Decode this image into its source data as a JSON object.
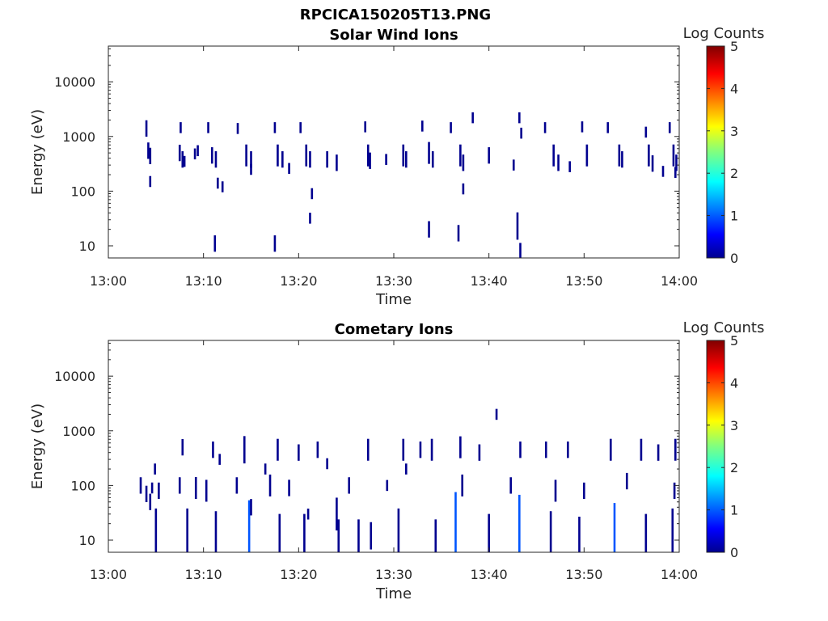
{
  "figure_title": "RPCICA150205T13.PNG",
  "colormap": [
    "#00008f",
    "#0000ff",
    "#0080ff",
    "#00ffff",
    "#80ff80",
    "#ffff00",
    "#ff8000",
    "#ff0000",
    "#800000"
  ],
  "chart_data": [
    {
      "type": "heatmap",
      "title": "Solar Wind Ions",
      "xlabel": "Time",
      "ylabel": "Energy (eV)",
      "x_ticks": [
        "13:00",
        "13:10",
        "13:20",
        "13:30",
        "13:40",
        "13:50",
        "14:00"
      ],
      "x_range_min": [
        0,
        60
      ],
      "y_scale": "log",
      "y_ticks": [
        "10",
        "100",
        "1000",
        "10000"
      ],
      "y_range": [
        6,
        45000
      ],
      "colorbar": {
        "label": "Log Counts",
        "ticks": [
          "0",
          "1",
          "2",
          "3",
          "4",
          "5"
        ],
        "range": [
          0,
          5
        ]
      },
      "cells": [
        [
          4.0,
          1400,
          0.3
        ],
        [
          4.2,
          550,
          0.3
        ],
        [
          4.4,
          440,
          0.3
        ],
        [
          4.4,
          150,
          0.2
        ],
        [
          7.6,
          1450,
          0.2
        ],
        [
          7.5,
          500,
          0.3
        ],
        [
          7.8,
          380,
          0.3
        ],
        [
          8.0,
          350,
          0.2
        ],
        [
          9.4,
          550,
          0.2
        ],
        [
          9.1,
          480,
          0.2
        ],
        [
          10.5,
          1450,
          0.2
        ],
        [
          10.9,
          450,
          0.3
        ],
        [
          11.3,
          380,
          0.3
        ],
        [
          11.2,
          11,
          0.3
        ],
        [
          11.5,
          140,
          0.2
        ],
        [
          12.0,
          120,
          0.2
        ],
        [
          13.6,
          1400,
          0.2
        ],
        [
          14.5,
          450,
          0.4
        ],
        [
          15.0,
          380,
          0.3
        ],
        [
          15.0,
          250,
          0.2
        ],
        [
          17.5,
          1450,
          0.2
        ],
        [
          17.8,
          450,
          0.4
        ],
        [
          18.3,
          380,
          0.3
        ],
        [
          17.5,
          11,
          0.3
        ],
        [
          19.0,
          260,
          0.2
        ],
        [
          20.2,
          1450,
          0.2
        ],
        [
          20.8,
          450,
          0.4
        ],
        [
          21.2,
          380,
          0.3
        ],
        [
          21.4,
          90,
          0.2
        ],
        [
          21.2,
          32,
          0.2
        ],
        [
          23.0,
          380,
          0.3
        ],
        [
          24.0,
          330,
          0.3
        ],
        [
          27.0,
          1500,
          0.2
        ],
        [
          27.3,
          450,
          0.4
        ],
        [
          27.5,
          360,
          0.3
        ],
        [
          29.2,
          380,
          0.2
        ],
        [
          31.0,
          450,
          0.4
        ],
        [
          31.3,
          380,
          0.3
        ],
        [
          33.0,
          1550,
          0.2
        ],
        [
          33.7,
          500,
          0.4
        ],
        [
          34.1,
          380,
          0.3
        ],
        [
          33.7,
          20,
          0.3
        ],
        [
          36.0,
          1450,
          0.2
        ],
        [
          37.0,
          450,
          0.4
        ],
        [
          37.3,
          330,
          0.3
        ],
        [
          37.3,
          110,
          0.2
        ],
        [
          36.8,
          17,
          0.3
        ],
        [
          38.3,
          2200,
          0.2
        ],
        [
          40.0,
          450,
          0.3
        ],
        [
          43.2,
          2200,
          0.2
        ],
        [
          43.4,
          1150,
          0.2
        ],
        [
          43.0,
          23,
          0.5
        ],
        [
          43.3,
          8,
          0.3
        ],
        [
          42.6,
          300,
          0.2
        ],
        [
          45.9,
          1450,
          0.2
        ],
        [
          46.8,
          450,
          0.4
        ],
        [
          47.3,
          330,
          0.3
        ],
        [
          48.5,
          280,
          0.2
        ],
        [
          49.8,
          1500,
          0.2
        ],
        [
          50.3,
          450,
          0.4
        ],
        [
          52.5,
          1450,
          0.2
        ],
        [
          53.7,
          450,
          0.4
        ],
        [
          54.0,
          380,
          0.3
        ],
        [
          56.5,
          1200,
          0.2
        ],
        [
          56.8,
          450,
          0.4
        ],
        [
          57.2,
          320,
          0.3
        ],
        [
          58.3,
          230,
          0.2
        ],
        [
          59.0,
          1450,
          0.2
        ],
        [
          59.4,
          450,
          0.4
        ],
        [
          59.7,
          330,
          0.3
        ],
        [
          59.6,
          220,
          0.2
        ]
      ]
    },
    {
      "type": "heatmap",
      "title": "Cometary Ions",
      "xlabel": "Time",
      "ylabel": "Energy (eV)",
      "x_ticks": [
        "13:00",
        "13:10",
        "13:20",
        "13:30",
        "13:40",
        "13:50",
        "14:00"
      ],
      "x_range_min": [
        0,
        60
      ],
      "y_scale": "log",
      "y_ticks": [
        "10",
        "100",
        "1000",
        "10000"
      ],
      "y_range": [
        6,
        45000
      ],
      "colorbar": {
        "label": "Log Counts",
        "ticks": [
          "0",
          "1",
          "2",
          "3",
          "4",
          "5"
        ],
        "range": [
          0,
          5
        ]
      },
      "cells": [
        [
          3.4,
          100,
          0.3
        ],
        [
          4.0,
          70,
          0.3
        ],
        [
          4.4,
          50,
          0.3
        ],
        [
          4.9,
          200,
          0.2
        ],
        [
          5.0,
          12,
          1.0
        ],
        [
          4.6,
          90,
          0.2
        ],
        [
          5.3,
          80,
          0.3
        ],
        [
          7.8,
          500,
          0.3
        ],
        [
          8.3,
          12,
          1.0
        ],
        [
          7.5,
          100,
          0.3
        ],
        [
          9.2,
          90,
          0.4
        ],
        [
          10.3,
          80,
          0.4
        ],
        [
          11.0,
          450,
          0.3
        ],
        [
          11.3,
          12,
          0.9
        ],
        [
          11.7,
          300,
          0.2
        ],
        [
          13.5,
          100,
          0.3
        ],
        [
          14.3,
          450,
          0.5
        ],
        [
          14.8,
          12,
          1.3
        ],
        [
          15.0,
          40,
          0.3
        ],
        [
          16.5,
          200,
          0.2
        ],
        [
          17.0,
          100,
          0.4
        ],
        [
          17.8,
          450,
          0.4
        ],
        [
          18.0,
          12,
          0.8
        ],
        [
          19.0,
          90,
          0.3
        ],
        [
          20.0,
          400,
          0.3
        ],
        [
          20.6,
          12,
          0.8
        ],
        [
          21.0,
          30,
          0.2
        ],
        [
          22.0,
          450,
          0.3
        ],
        [
          23.0,
          250,
          0.2
        ],
        [
          24.0,
          30,
          0.6
        ],
        [
          24.2,
          12,
          0.6
        ],
        [
          25.3,
          100,
          0.3
        ],
        [
          26.3,
          12,
          0.6
        ],
        [
          27.3,
          450,
          0.4
        ],
        [
          27.6,
          12,
          0.5
        ],
        [
          29.3,
          100,
          0.2
        ],
        [
          30.5,
          12,
          1.0
        ],
        [
          31.0,
          450,
          0.4
        ],
        [
          31.3,
          200,
          0.2
        ],
        [
          32.8,
          450,
          0.3
        ],
        [
          34.0,
          450,
          0.4
        ],
        [
          34.4,
          12,
          0.6
        ],
        [
          36.5,
          12,
          1.6
        ],
        [
          37.0,
          500,
          0.4
        ],
        [
          37.2,
          100,
          0.4
        ],
        [
          39.0,
          400,
          0.3
        ],
        [
          40.0,
          12,
          0.8
        ],
        [
          40.8,
          2000,
          0.2
        ],
        [
          42.3,
          100,
          0.3
        ],
        [
          43.2,
          12,
          1.5
        ],
        [
          43.3,
          450,
          0.3
        ],
        [
          46.0,
          450,
          0.3
        ],
        [
          46.5,
          12,
          0.9
        ],
        [
          47.0,
          80,
          0.4
        ],
        [
          48.3,
          450,
          0.3
        ],
        [
          49.5,
          12,
          0.7
        ],
        [
          50.0,
          80,
          0.3
        ],
        [
          52.8,
          450,
          0.4
        ],
        [
          53.2,
          12,
          1.2
        ],
        [
          54.5,
          120,
          0.3
        ],
        [
          56.0,
          450,
          0.4
        ],
        [
          56.5,
          12,
          0.8
        ],
        [
          57.8,
          400,
          0.3
        ],
        [
          59.3,
          12,
          1.0
        ],
        [
          59.6,
          450,
          0.4
        ],
        [
          59.5,
          80,
          0.3
        ]
      ]
    }
  ]
}
